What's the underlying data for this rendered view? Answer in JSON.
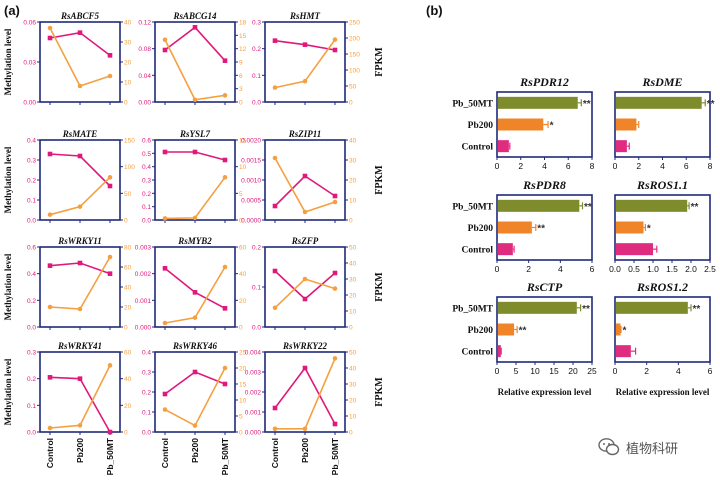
{
  "panel_labels": {
    "a": "(a)",
    "b": "(b)"
  },
  "colors": {
    "methylation": "#e0187b",
    "fpkm": "#f5a040",
    "axis": "#1f2a78",
    "bar_pb50mt": "#7f8c2c",
    "bar_pb200": "#f08428",
    "bar_control": "#e02c7e"
  },
  "panel_a": {
    "left_axis_label": "Methylation level",
    "right_axis_label": "FPKM",
    "x_categories": [
      "Control",
      "Pb200",
      "Pb_50MT"
    ]
  },
  "panel_b": {
    "categories": [
      "Pb_50MT",
      "Pb200",
      "Control"
    ],
    "x_axis_label": "Relative expression level"
  },
  "watermark": {
    "text": "植物科研",
    "icon": "wechat-icon"
  },
  "chart_data": [
    {
      "type": "line",
      "title": "RsABCF5",
      "x": [
        "Control",
        "Pb200",
        "Pb_50MT"
      ],
      "series": [
        {
          "axis": "left",
          "values": [
            0.048,
            0.052,
            0.035
          ]
        },
        {
          "axis": "right",
          "values": [
            37,
            8,
            13
          ]
        }
      ],
      "ylim_left": [
        0,
        0.06
      ],
      "yticks_left": [
        "0.00",
        "0.03",
        "0.06"
      ],
      "ylim_right": [
        0,
        40
      ],
      "yticks_right": [
        "0",
        "10",
        "20",
        "30",
        "40"
      ]
    },
    {
      "type": "line",
      "title": "RsABCG14",
      "x": [
        "Control",
        "Pb200",
        "Pb_50MT"
      ],
      "series": [
        {
          "axis": "left",
          "values": [
            0.078,
            0.112,
            0.062
          ]
        },
        {
          "axis": "right",
          "values": [
            14,
            0.5,
            1.5
          ]
        }
      ],
      "ylim_left": [
        0,
        0.12
      ],
      "yticks_left": [
        "0.00",
        "0.04",
        "0.08",
        "0.12"
      ],
      "ylim_right": [
        0,
        18
      ],
      "yticks_right": [
        "0",
        "3",
        "6",
        "9",
        "12",
        "15",
        "18"
      ]
    },
    {
      "type": "line",
      "title": "RsHMT",
      "x": [
        "Control",
        "Pb200",
        "Pb_50MT"
      ],
      "series": [
        {
          "axis": "left",
          "values": [
            0.23,
            0.215,
            0.195
          ]
        },
        {
          "axis": "right",
          "values": [
            45,
            65,
            195
          ]
        }
      ],
      "ylim_left": [
        0,
        0.3
      ],
      "yticks_left": [
        "0.0",
        "0.1",
        "0.2",
        "0.3"
      ],
      "ylim_right": [
        0,
        250
      ],
      "yticks_right": [
        "0",
        "50",
        "100",
        "150",
        "200",
        "250"
      ]
    },
    {
      "type": "line",
      "title": "RsMATE",
      "x": [
        "Control",
        "Pb200",
        "Pb_50MT"
      ],
      "series": [
        {
          "axis": "left",
          "values": [
            0.33,
            0.32,
            0.17
          ]
        },
        {
          "axis": "right",
          "values": [
            10,
            25,
            80
          ]
        }
      ],
      "ylim_left": [
        0,
        0.4
      ],
      "yticks_left": [
        "0.0",
        "0.1",
        "0.2",
        "0.3",
        "0.4"
      ],
      "ylim_right": [
        0,
        150
      ],
      "yticks_right": [
        "0",
        "50",
        "100",
        "150"
      ]
    },
    {
      "type": "line",
      "title": "RsYSL7",
      "x": [
        "Control",
        "Pb200",
        "Pb_50MT"
      ],
      "series": [
        {
          "axis": "left",
          "values": [
            0.51,
            0.51,
            0.45
          ]
        },
        {
          "axis": "right",
          "values": [
            0.3,
            0.4,
            8
          ]
        }
      ],
      "ylim_left": [
        0,
        0.6
      ],
      "yticks_left": [
        "0.0",
        "0.1",
        "0.2",
        "0.3",
        "0.4",
        "0.5",
        "0.6"
      ],
      "ylim_right": [
        0,
        15
      ],
      "yticks_right": [
        "0",
        "5",
        "10",
        "15"
      ]
    },
    {
      "type": "line",
      "title": "RsZIP11",
      "x": [
        "Control",
        "Pb200",
        "Pb_50MT"
      ],
      "series": [
        {
          "axis": "left",
          "values": [
            0.00035,
            0.0011,
            0.0006
          ]
        },
        {
          "axis": "right",
          "values": [
            31,
            4,
            9
          ]
        }
      ],
      "ylim_left": [
        0,
        0.002
      ],
      "yticks_left": [
        "0.0000",
        "0.0005",
        "0.0010",
        "0.0015",
        "0.0020"
      ],
      "ylim_right": [
        0,
        40
      ],
      "yticks_right": [
        "0",
        "10",
        "20",
        "30",
        "40"
      ]
    },
    {
      "type": "line",
      "title": "RsWRKY11",
      "x": [
        "Control",
        "Pb200",
        "Pb_50MT"
      ],
      "series": [
        {
          "axis": "left",
          "values": [
            0.46,
            0.48,
            0.4
          ]
        },
        {
          "axis": "right",
          "values": [
            20,
            18,
            70
          ]
        }
      ],
      "ylim_left": [
        0,
        0.6
      ],
      "yticks_left": [
        "0.0",
        "0.2",
        "0.4",
        "0.6"
      ],
      "ylim_right": [
        0,
        80
      ],
      "yticks_right": [
        "0",
        "20",
        "40",
        "60",
        "80"
      ]
    },
    {
      "type": "line",
      "title": "RsMYB2",
      "x": [
        "Control",
        "Pb200",
        "Pb_50MT"
      ],
      "series": [
        {
          "axis": "left",
          "values": [
            0.0022,
            0.0013,
            0.0007
          ]
        },
        {
          "axis": "right",
          "values": [
            3,
            7,
            45
          ]
        }
      ],
      "ylim_left": [
        0,
        0.003
      ],
      "yticks_left": [
        "0.000",
        "0.001",
        "0.002",
        "0.003"
      ],
      "ylim_right": [
        0,
        60
      ],
      "yticks_right": [
        "0",
        "20",
        "40",
        "60"
      ]
    },
    {
      "type": "line",
      "title": "RsZFP",
      "x": [
        "Control",
        "Pb200",
        "Pb_50MT"
      ],
      "series": [
        {
          "axis": "left",
          "values": [
            0.14,
            0.07,
            0.135
          ]
        },
        {
          "axis": "right",
          "values": [
            12,
            30,
            24
          ]
        }
      ],
      "ylim_left": [
        0,
        0.2
      ],
      "yticks_left": [
        "0.0",
        "0.1",
        "0.2"
      ],
      "ylim_right": [
        0,
        50
      ],
      "yticks_right": [
        "0",
        "10",
        "20",
        "30",
        "40",
        "50"
      ]
    },
    {
      "type": "line",
      "title": "RsWRKY41",
      "x": [
        "Control",
        "Pb200",
        "Pb_50MT"
      ],
      "series": [
        {
          "axis": "left",
          "values": [
            0.205,
            0.2,
            0.0
          ]
        },
        {
          "axis": "right",
          "values": [
            3,
            5,
            50
          ]
        }
      ],
      "ylim_left": [
        0,
        0.3
      ],
      "yticks_left": [
        "0.0",
        "0.1",
        "0.2",
        "0.3"
      ],
      "ylim_right": [
        0,
        60
      ],
      "yticks_right": [
        "0",
        "20",
        "40",
        "60"
      ]
    },
    {
      "type": "line",
      "title": "RsWRKY46",
      "x": [
        "Control",
        "Pb200",
        "Pb_50MT"
      ],
      "series": [
        {
          "axis": "left",
          "values": [
            0.19,
            0.3,
            0.24
          ]
        },
        {
          "axis": "right",
          "values": [
            7,
            2,
            20
          ]
        }
      ],
      "ylim_left": [
        0,
        0.4
      ],
      "yticks_left": [
        "0.0",
        "0.1",
        "0.2",
        "0.3",
        "0.4"
      ],
      "ylim_right": [
        0,
        25
      ],
      "yticks_right": [
        "0",
        "5",
        "10",
        "15",
        "20",
        "25"
      ]
    },
    {
      "type": "line",
      "title": "RsWRKY22",
      "x": [
        "Control",
        "Pb200",
        "Pb_50MT"
      ],
      "series": [
        {
          "axis": "left",
          "values": [
            0.0012,
            0.0032,
            0.0004
          ]
        },
        {
          "axis": "right",
          "values": [
            2,
            2,
            46
          ]
        }
      ],
      "ylim_left": [
        0,
        0.004
      ],
      "yticks_left": [
        "0.000",
        "0.001",
        "0.002",
        "0.003",
        "0.004"
      ],
      "ylim_right": [
        0,
        50
      ],
      "yticks_right": [
        "0",
        "10",
        "20",
        "30",
        "40",
        "50"
      ]
    },
    {
      "type": "bar",
      "orientation": "horizontal",
      "title": "RsPDR12",
      "categories": [
        "Pb_50MT",
        "Pb200",
        "Control"
      ],
      "values": [
        6.8,
        3.9,
        1.0
      ],
      "errors": [
        0.3,
        0.4,
        0.08
      ],
      "significance": [
        "**",
        "*",
        ""
      ],
      "xlim": [
        0,
        8
      ],
      "xticks": [
        "0",
        "2",
        "4",
        "6",
        "8"
      ]
    },
    {
      "type": "bar",
      "orientation": "horizontal",
      "title": "RsDME",
      "categories": [
        "Pb_50MT",
        "Pb200",
        "Control"
      ],
      "values": [
        7.3,
        1.8,
        1.0
      ],
      "errors": [
        0.3,
        0.2,
        0.2
      ],
      "significance": [
        "**",
        "",
        ""
      ],
      "xlim": [
        0,
        8
      ],
      "xticks": [
        "0",
        "2",
        "4",
        "6",
        "8"
      ]
    },
    {
      "type": "bar",
      "orientation": "horizontal",
      "title": "RsPDR8",
      "categories": [
        "Pb_50MT",
        "Pb200",
        "Control"
      ],
      "values": [
        5.2,
        2.2,
        1.0
      ],
      "errors": [
        0.2,
        0.25,
        0.08
      ],
      "significance": [
        "**",
        "**",
        ""
      ],
      "xlim": [
        0,
        6
      ],
      "xticks": [
        "0",
        "2",
        "4",
        "6"
      ]
    },
    {
      "type": "bar",
      "orientation": "horizontal",
      "title": "RsROS1.1",
      "categories": [
        "Pb_50MT",
        "Pb200",
        "Control"
      ],
      "values": [
        1.9,
        0.75,
        1.0
      ],
      "errors": [
        0.05,
        0.05,
        0.1
      ],
      "significance": [
        "**",
        "*",
        ""
      ],
      "xlim": [
        0,
        2.5
      ],
      "xticks": [
        "0.0",
        "0.5",
        "1.0",
        "1.5",
        "2.0",
        "2.5"
      ]
    },
    {
      "type": "bar",
      "orientation": "horizontal",
      "title": "RsCTP",
      "categories": [
        "Pb_50MT",
        "Pb200",
        "Control"
      ],
      "values": [
        21,
        4.5,
        1.0
      ],
      "errors": [
        1.0,
        0.8,
        0.1
      ],
      "significance": [
        "**",
        "**",
        ""
      ],
      "xlim": [
        0,
        25
      ],
      "xticks": [
        "0",
        "5",
        "10",
        "15",
        "20",
        "25"
      ]
    },
    {
      "type": "bar",
      "orientation": "horizontal",
      "title": "RsROS1.2",
      "categories": [
        "Pb_50MT",
        "Pb200",
        "Control"
      ],
      "values": [
        4.6,
        0.35,
        1.0
      ],
      "errors": [
        0.2,
        0.03,
        0.3
      ],
      "significance": [
        "**",
        "*",
        ""
      ],
      "xlim": [
        0,
        6
      ],
      "xticks": [
        "0",
        "2",
        "4",
        "6"
      ]
    }
  ]
}
